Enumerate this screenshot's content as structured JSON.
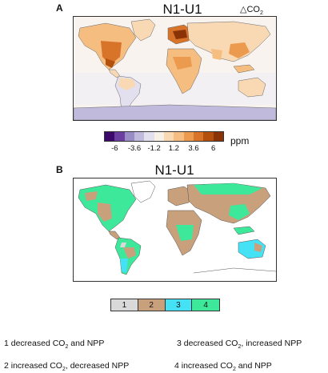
{
  "panel_a": {
    "letter": "A",
    "title": "N1-U1",
    "delta_prefix": "△CO",
    "delta_sub": "2"
  },
  "colorbar_a": {
    "unit": "ppm",
    "colors": [
      "#3d0a6b",
      "#6a3fa0",
      "#9a8cc4",
      "#c0bbdc",
      "#e2e0ee",
      "#f7f0e6",
      "#f9d9b4",
      "#f5bd7f",
      "#ec9a4e",
      "#d8742a",
      "#b4500e",
      "#8a3306"
    ],
    "tick_labels": [
      "-6",
      "-3.6",
      "-1.2",
      "1.2",
      "3.6",
      "6"
    ]
  },
  "panel_b": {
    "letter": "B",
    "title": "N1-U1"
  },
  "categories": {
    "items": [
      {
        "label": "1",
        "color": "#d9d9d9"
      },
      {
        "label": "2",
        "color": "#c8a07c"
      },
      {
        "label": "3",
        "color": "#44e2f4"
      },
      {
        "label": "4",
        "color": "#3de89a"
      }
    ]
  },
  "legend": {
    "l1_pre": "1 decreased CO",
    "l1_sub": "2",
    "l1_post": " and NPP",
    "l2_pre": "2 increased CO",
    "l2_sub": "2",
    "l2_post": ", decreased NPP",
    "l3_pre": "3 decreased CO",
    "l3_sub": "2",
    "l3_post": ", increased NPP",
    "l4_pre": "4 increased CO",
    "l4_sub": "2",
    "l4_post": "  and NPP"
  }
}
